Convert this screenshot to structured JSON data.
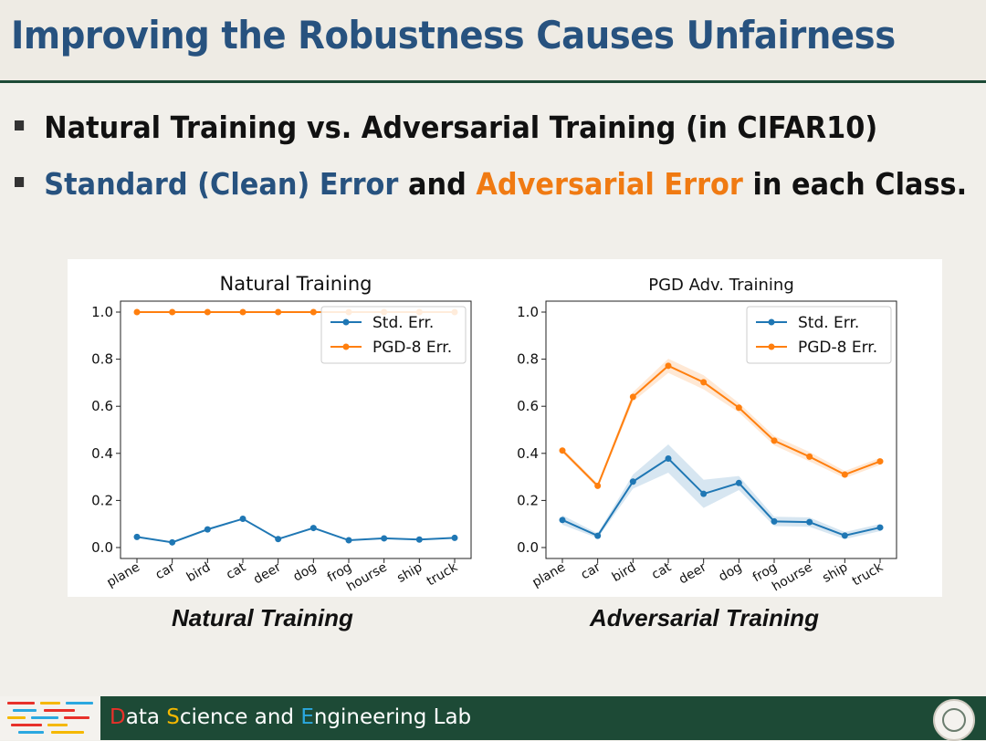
{
  "slide": {
    "title": "Improving the Robustness Causes Unfairness",
    "bullet1": "Natural Training vs. Adversarial Training (in CIFAR10)",
    "bullet2": {
      "part1": "Standard (Clean) Error",
      "part2": " and ",
      "part3": "Adversarial Error",
      "part4": " in each Class."
    },
    "caption_left": "Natural Training",
    "caption_right": "Adversarial Training"
  },
  "footer": {
    "d": "D",
    "ata": "ata ",
    "s": "S",
    "cience": "cience and ",
    "e": "E",
    "ngineering": "ngineering Lab"
  },
  "colors": {
    "std": "#1f77b4",
    "pgd": "#ff7f0e",
    "title": "#27527f",
    "footer_bg": "#1d4a36"
  },
  "chart_data": [
    {
      "type": "line",
      "title": "Natural Training",
      "categories": [
        "plane",
        "car",
        "bird",
        "cat",
        "deer",
        "dog",
        "frog",
        "hourse",
        "ship",
        "truck"
      ],
      "series": [
        {
          "name": "Std. Err.",
          "values": [
            0.045,
            0.022,
            0.077,
            0.122,
            0.036,
            0.083,
            0.031,
            0.039,
            0.034,
            0.041
          ]
        },
        {
          "name": "PGD-8 Err.",
          "values": [
            1.0,
            1.0,
            1.0,
            1.0,
            1.0,
            1.0,
            1.0,
            1.0,
            1.0,
            1.0
          ]
        }
      ],
      "yticks": [
        "0.0",
        "0.2",
        "0.4",
        "0.6",
        "0.8",
        "1.0"
      ],
      "ylim": [
        0.0,
        1.0
      ],
      "legend": "top-right",
      "grid": false
    },
    {
      "type": "line",
      "title": "PGD Adv. Training",
      "categories": [
        "plane",
        "car",
        "bird",
        "cat",
        "deer",
        "dog",
        "frog",
        "hourse",
        "ship",
        "truck"
      ],
      "series": [
        {
          "name": "Std. Err.",
          "values": [
            0.117,
            0.05,
            0.28,
            0.378,
            0.228,
            0.274,
            0.111,
            0.108,
            0.051,
            0.085
          ],
          "band": [
            0.02,
            0.01,
            0.03,
            0.06,
            0.06,
            0.03,
            0.02,
            0.02,
            0.015,
            0.015
          ]
        },
        {
          "name": "PGD-8 Err.",
          "values": [
            0.412,
            0.262,
            0.64,
            0.772,
            0.702,
            0.594,
            0.454,
            0.386,
            0.31,
            0.366
          ],
          "band": [
            0.01,
            0.01,
            0.02,
            0.03,
            0.03,
            0.02,
            0.02,
            0.02,
            0.015,
            0.015
          ]
        }
      ],
      "yticks": [
        "0.0",
        "0.2",
        "0.4",
        "0.6",
        "0.8",
        "1.0"
      ],
      "ylim": [
        0.0,
        1.0
      ],
      "legend": "top-right",
      "grid": false
    }
  ]
}
